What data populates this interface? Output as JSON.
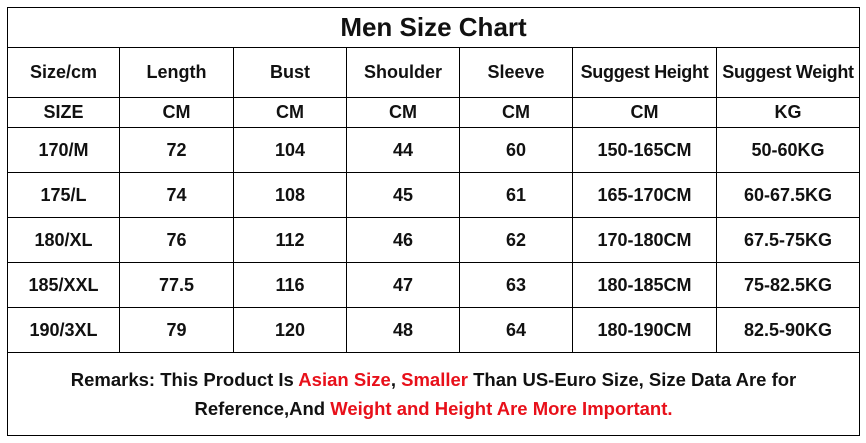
{
  "title": "Men Size Chart",
  "headers": [
    "Size/cm",
    "Length",
    "Bust",
    "Shoulder",
    "Sleeve",
    "Suggest Height",
    "Suggest Weight"
  ],
  "units": [
    "SIZE",
    "CM",
    "CM",
    "CM",
    "CM",
    "CM",
    "KG"
  ],
  "rows": [
    [
      "170/M",
      "72",
      "104",
      "44",
      "60",
      "150-165CM",
      "50-60KG"
    ],
    [
      "175/L",
      "74",
      "108",
      "45",
      "61",
      "165-170CM",
      "60-67.5KG"
    ],
    [
      "180/XL",
      "76",
      "112",
      "46",
      "62",
      "170-180CM",
      "67.5-75KG"
    ],
    [
      "185/XXL",
      "77.5",
      "116",
      "47",
      "63",
      "180-185CM",
      "75-82.5KG"
    ],
    [
      "190/3XL",
      "79",
      "120",
      "48",
      "64",
      "180-190CM",
      "82.5-90KG"
    ]
  ],
  "remarks": {
    "p1": "Remarks: This Product Is ",
    "r1": "Asian Size",
    "p2": ", ",
    "r2": "Smaller",
    "p3": " Than US-Euro Size, Size Data Are for Reference,And ",
    "r3": "Weight and Height Are More Important."
  },
  "colors": {
    "highlight": "#e8101a",
    "text": "#111111",
    "border": "#000000"
  }
}
